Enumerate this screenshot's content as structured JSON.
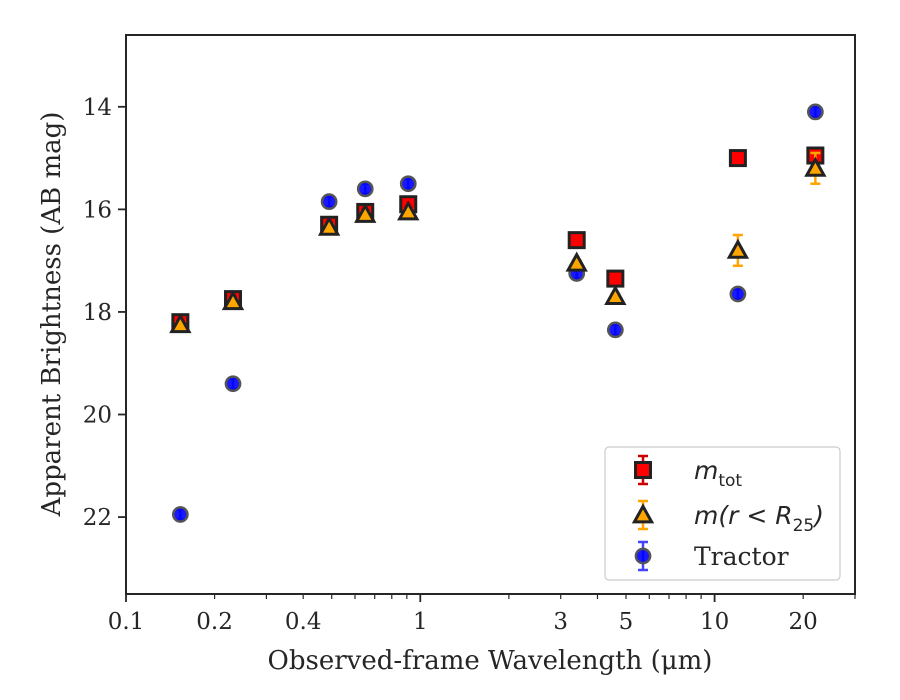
{
  "chart_data": {
    "type": "scatter",
    "title": "",
    "xlabel": "Observed-frame Wavelength (μm)",
    "ylabel": "Apparent Brightness (AB mag)",
    "x_scale": "log",
    "y_inverted": true,
    "xlim": [
      0.1,
      30
    ],
    "ylim": [
      23.5,
      12.6
    ],
    "x_ticks": [
      0.1,
      0.2,
      0.4,
      1,
      3,
      5,
      10,
      20
    ],
    "x_tick_labels": [
      "0.1",
      "0.2",
      "0.4",
      "1",
      "3",
      "5",
      "10",
      "20"
    ],
    "y_ticks": [
      14,
      16,
      18,
      20,
      22
    ],
    "y_tick_labels": [
      "14",
      "16",
      "18",
      "20",
      "22"
    ],
    "grid": false,
    "legend_position": "bottom-right",
    "series": [
      {
        "name": "m_tot",
        "legend_label": {
          "base": "m",
          "sub": "tot",
          "rest": ""
        },
        "marker": "square",
        "fill_color": "#ff0000",
        "edge_color": "#222222",
        "error_color": "#cc0000",
        "points": [
          {
            "x": 0.153,
            "y": 18.2,
            "err": 0.1
          },
          {
            "x": 0.231,
            "y": 17.75,
            "err": 0.1
          },
          {
            "x": 0.49,
            "y": 16.3,
            "err": 0.1
          },
          {
            "x": 0.65,
            "y": 16.05,
            "err": 0.1
          },
          {
            "x": 0.91,
            "y": 15.9,
            "err": 0.1
          },
          {
            "x": 3.4,
            "y": 16.6,
            "err": 0.05
          },
          {
            "x": 4.6,
            "y": 17.35,
            "err": 0.05
          },
          {
            "x": 12.0,
            "y": 15.0,
            "err": 0.05
          },
          {
            "x": 22.0,
            "y": 14.95,
            "err": 0.1
          }
        ]
      },
      {
        "name": "m(r<R25)",
        "legend_label": {
          "base": "m(r < R",
          "sub": "25",
          "rest": ")"
        },
        "marker": "triangle",
        "fill_color": "#ffa500",
        "edge_color": "#222222",
        "error_color": "#ffa500",
        "points": [
          {
            "x": 0.153,
            "y": 18.25,
            "err": 0.05
          },
          {
            "x": 0.231,
            "y": 17.8,
            "err": 0.05
          },
          {
            "x": 0.49,
            "y": 16.35,
            "err": 0.05
          },
          {
            "x": 0.65,
            "y": 16.1,
            "err": 0.05
          },
          {
            "x": 0.91,
            "y": 16.05,
            "err": 0.05
          },
          {
            "x": 3.4,
            "y": 17.05,
            "err": 0.05
          },
          {
            "x": 4.6,
            "y": 17.7,
            "err": 0.05
          },
          {
            "x": 12.0,
            "y": 16.8,
            "err": 0.3
          },
          {
            "x": 22.0,
            "y": 15.2,
            "err": 0.3
          }
        ]
      },
      {
        "name": "Tractor",
        "legend_label": {
          "base": "Tractor",
          "sub": "",
          "rest": ""
        },
        "marker": "circle",
        "fill_color": "#0000ff",
        "edge_color": "#555555",
        "error_color": "#4444ff",
        "points": [
          {
            "x": 0.153,
            "y": 21.95,
            "err": 0.1
          },
          {
            "x": 0.231,
            "y": 19.4,
            "err": 0.1
          },
          {
            "x": 0.49,
            "y": 15.85,
            "err": 0.1
          },
          {
            "x": 0.65,
            "y": 15.6,
            "err": 0.1
          },
          {
            "x": 0.91,
            "y": 15.5,
            "err": 0.1
          },
          {
            "x": 3.4,
            "y": 17.25,
            "err": 0.1
          },
          {
            "x": 4.6,
            "y": 18.35,
            "err": 0.1
          },
          {
            "x": 12.0,
            "y": 17.65,
            "err": 0.1
          },
          {
            "x": 22.0,
            "y": 14.1,
            "err": 0.1
          }
        ]
      }
    ]
  }
}
